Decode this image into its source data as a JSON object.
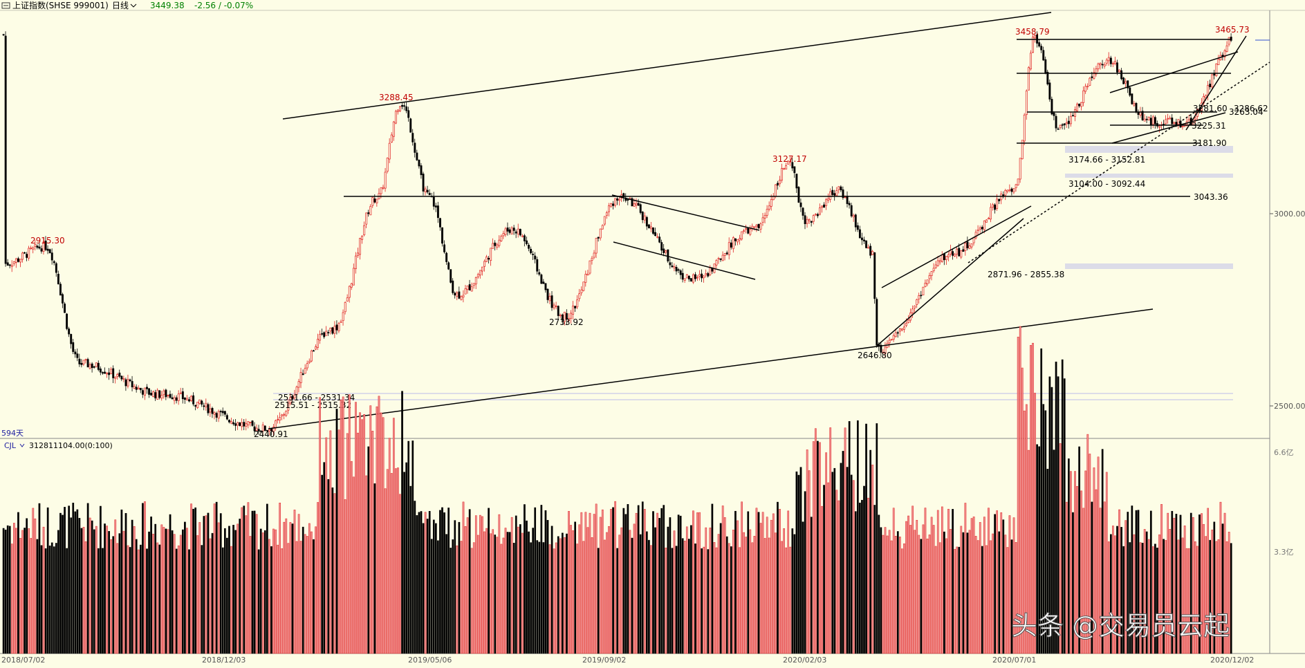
{
  "header": {
    "window_icon": "chart-window-icon",
    "title": "上证指数(SHSE 999001)",
    "period": "日线",
    "period_dropdown_icon": "chevron-down-icon",
    "last_price": "3449.38",
    "change": "-2.56 / -0.07%"
  },
  "colors": {
    "background": "#fdfde6",
    "up": "#e02020",
    "down": "#000000",
    "label_red": "#c00000",
    "header_green": "#008000",
    "price_band": "#d8d8e8",
    "axis_text": "#555555"
  },
  "price_axis_labels": [
    "3000.00",
    "2500.00"
  ],
  "bars_count_label": "594天",
  "volume_indicator": {
    "name": "CJL",
    "dropdown_icon": "chevron-down-icon",
    "value": "312811104.00(0:100)",
    "axis_labels": [
      "6.6亿",
      "3.3亿"
    ]
  },
  "date_labels": [
    "2018/07/02",
    "2018/12/03",
    "2019/05/06",
    "2019/09/02",
    "2020/02/03",
    "2020/07/01",
    "2020/12/02"
  ],
  "watermark": "头条 @交易员云起",
  "chart_data": {
    "type": "candlestick",
    "title": "上证指数(SHSE 999001)",
    "period": "日线",
    "x_range": [
      "2018/07/02",
      "2020/12/02"
    ],
    "y_axis_ticks": [
      3000.0,
      2500.0
    ],
    "approx_y_range": [
      2380,
      3540
    ],
    "key_points": [
      {
        "date": "2018/07",
        "price": 2915.3,
        "label": "2915.30",
        "kind": "high"
      },
      {
        "date": "2019/01",
        "price": 2440.91,
        "label": "2440.91",
        "kind": "low"
      },
      {
        "date": "2019/04",
        "price": 3288.45,
        "label": "3288.45",
        "kind": "high"
      },
      {
        "date": "2019/08",
        "price": 2733.92,
        "label": "2733.92",
        "kind": "low"
      },
      {
        "date": "2019/12",
        "price": 3127.17,
        "label": "3127.17",
        "kind": "high"
      },
      {
        "date": "2020/03",
        "price": 2646.8,
        "label": "2646.80",
        "kind": "low"
      },
      {
        "date": "2020/07",
        "price": 3458.79,
        "label": "3458.79",
        "kind": "high"
      },
      {
        "date": "2020/12",
        "price": 3465.73,
        "label": "3465.73",
        "kind": "high"
      }
    ],
    "horizontal_levels": [
      {
        "price": 3043.36,
        "label": "3043.36"
      },
      {
        "price": 3181.9,
        "label": "3181.90"
      },
      {
        "price": 3225.31,
        "label": "3225.31"
      },
      {
        "price": 3281.6,
        "label": "3281.60"
      },
      {
        "price": 3286.62,
        "label": "3286.62"
      },
      {
        "price": 3263.04,
        "label": "3263.04"
      }
    ],
    "gaps": [
      {
        "range": [
          2531.66,
          2531.34
        ],
        "label": "2531.66 - 2531.34"
      },
      {
        "range": [
          2515.51,
          2515.32
        ],
        "label": "2515.51 - 2515.32"
      },
      {
        "range": [
          3174.66,
          3152.81
        ],
        "label": "3174.66 - 3152.81"
      },
      {
        "range": [
          3104.0,
          3092.44
        ],
        "label": "3104.00 - 3092.44"
      },
      {
        "range": [
          2871.96,
          2855.38
        ],
        "label": "2871.96 - 2855.38"
      }
    ],
    "volume": {
      "indicator": "CJL",
      "last_value": 312811104.0,
      "axis_ticks": [
        "6.6亿",
        "3.3亿"
      ]
    }
  }
}
